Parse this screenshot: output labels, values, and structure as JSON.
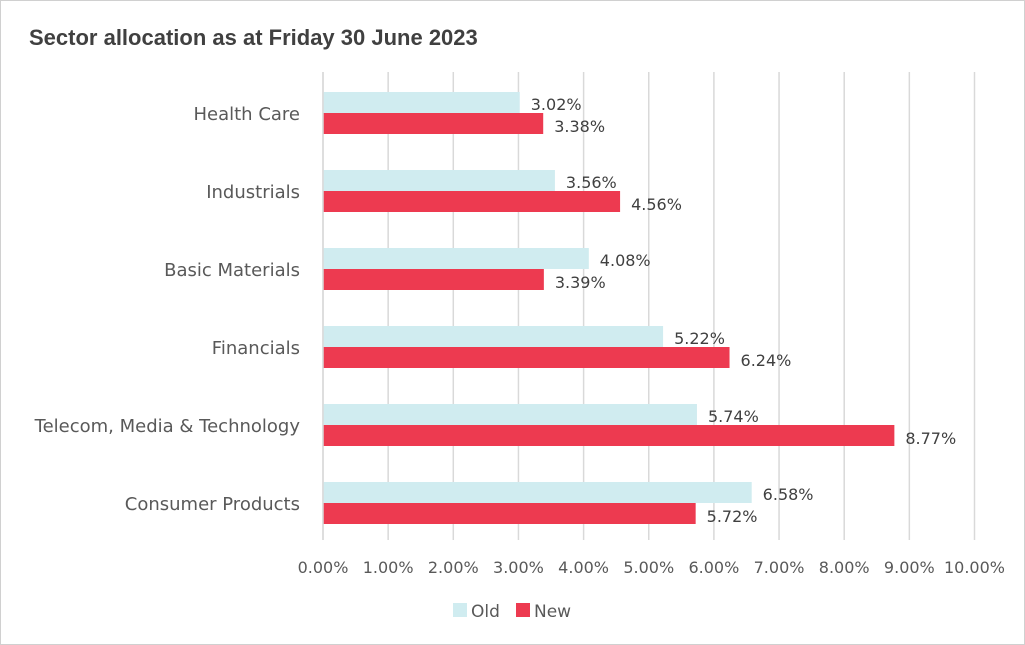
{
  "chart_data": {
    "type": "bar",
    "orientation": "horizontal",
    "title": "Sector allocation as at Friday 30 June 2023",
    "xlabel": "",
    "ylabel": "",
    "categories": [
      "Health Care",
      "Industrials",
      "Basic Materials",
      "Financials",
      "Telecom, Media & Technology",
      "Consumer Products"
    ],
    "series": [
      {
        "name": "Old",
        "color": "#d0ecf0",
        "values": [
          3.02,
          3.56,
          4.08,
          5.22,
          5.74,
          6.58
        ],
        "labels": [
          "3.02%",
          "3.56%",
          "4.08%",
          "5.22%",
          "5.74%",
          "6.58%"
        ]
      },
      {
        "name": "New",
        "color": "#ed3a50",
        "values": [
          3.38,
          4.56,
          3.39,
          6.24,
          8.77,
          5.72
        ],
        "labels": [
          "3.38%",
          "4.56%",
          "3.39%",
          "6.24%",
          "8.77%",
          "5.72%"
        ]
      }
    ],
    "xlim": [
      0,
      10
    ],
    "xticks": [
      "0.00%",
      "1.00%",
      "2.00%",
      "3.00%",
      "4.00%",
      "5.00%",
      "6.00%",
      "7.00%",
      "8.00%",
      "9.00%",
      "10.00%"
    ],
    "grid": "vertical",
    "legend": "bottom"
  }
}
